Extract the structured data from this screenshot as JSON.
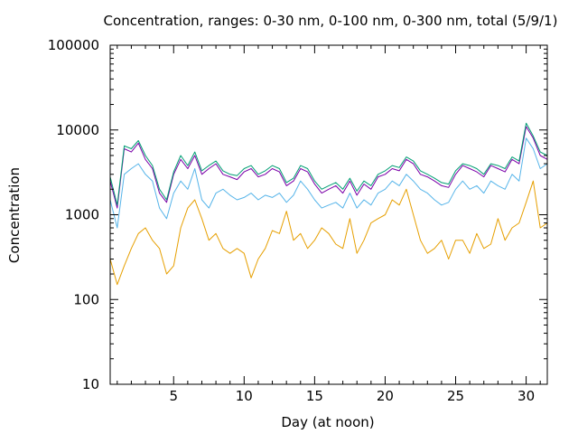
{
  "chart_data": {
    "type": "line",
    "title": "Concentration, ranges: 0-30 nm, 0-100 nm, 0-300 nm, total (5/9/1)",
    "xlabel": "Day (at noon)",
    "ylabel": "Concentration",
    "xlim": [
      0.5,
      31.5
    ],
    "ylim": [
      10,
      100000
    ],
    "yscale": "log",
    "grid": false,
    "legend": "none",
    "xticks": [
      5,
      10,
      15,
      20,
      25,
      30
    ],
    "xtick_labels": [
      "5",
      "10",
      "15",
      "20",
      "25",
      "30"
    ],
    "yticks": [
      10,
      100,
      1000,
      10000,
      100000
    ],
    "ytick_labels": [
      "10",
      "100",
      "1000",
      "10000",
      "100000"
    ],
    "series": [
      {
        "color": "#e69f00",
        "x": [
          0.5,
          1,
          1.5,
          2,
          2.5,
          3,
          3.5,
          4,
          4.5,
          5,
          5.5,
          6,
          6.5,
          7,
          7.5,
          8,
          8.5,
          9,
          9.5,
          10,
          10.5,
          11,
          11.5,
          12,
          12.5,
          13,
          13.5,
          14,
          14.5,
          15,
          15.5,
          16,
          16.5,
          17,
          17.5,
          18,
          18.5,
          19,
          19.5,
          20,
          20.5,
          21,
          21.5,
          22,
          22.5,
          23,
          23.5,
          24,
          24.5,
          25,
          25.5,
          26,
          26.5,
          27,
          27.5,
          28,
          28.5,
          29,
          29.5,
          30,
          30.5,
          31,
          31.5
        ],
        "values": [
          300,
          150,
          250,
          400,
          600,
          700,
          500,
          400,
          200,
          250,
          700,
          1200,
          1500,
          900,
          500,
          600,
          400,
          350,
          400,
          350,
          180,
          300,
          400,
          650,
          600,
          1100,
          500,
          600,
          400,
          500,
          700,
          600,
          450,
          400,
          900,
          350,
          500,
          800,
          900,
          1000,
          1500,
          1300,
          2000,
          1000,
          500,
          350,
          400,
          500,
          300,
          500,
          500,
          350,
          600,
          400,
          450,
          900,
          500,
          700,
          800,
          1400,
          2500,
          700,
          800
        ]
      },
      {
        "color": "#56b4e9",
        "x": [
          0.5,
          1,
          1.5,
          2,
          2.5,
          3,
          3.5,
          4,
          4.5,
          5,
          5.5,
          6,
          6.5,
          7,
          7.5,
          8,
          8.5,
          9,
          9.5,
          10,
          10.5,
          11,
          11.5,
          12,
          12.5,
          13,
          13.5,
          14,
          14.5,
          15,
          15.5,
          16,
          16.5,
          17,
          17.5,
          18,
          18.5,
          19,
          19.5,
          20,
          20.5,
          21,
          21.5,
          22,
          22.5,
          23,
          23.5,
          24,
          24.5,
          25,
          25.5,
          26,
          26.5,
          27,
          27.5,
          28,
          28.5,
          29,
          29.5,
          30,
          30.5,
          31,
          31.5
        ],
        "values": [
          1500,
          700,
          3000,
          3500,
          4000,
          3000,
          2500,
          1200,
          900,
          1800,
          2500,
          2000,
          3500,
          1500,
          1200,
          1800,
          2000,
          1700,
          1500,
          1600,
          1800,
          1500,
          1700,
          1600,
          1800,
          1400,
          1700,
          2500,
          2000,
          1500,
          1200,
          1300,
          1400,
          1200,
          1800,
          1200,
          1500,
          1300,
          1800,
          2000,
          2500,
          2200,
          3000,
          2500,
          2000,
          1800,
          1500,
          1300,
          1400,
          2000,
          2500,
          2000,
          2200,
          1800,
          2500,
          2200,
          2000,
          3000,
          2500,
          8000,
          6000,
          3500,
          4000
        ]
      },
      {
        "color": "#7b00a8",
        "x": [
          0.5,
          1,
          1.5,
          2,
          2.5,
          3,
          3.5,
          4,
          4.5,
          5,
          5.5,
          6,
          6.5,
          7,
          7.5,
          8,
          8.5,
          9,
          9.5,
          10,
          10.5,
          11,
          11.5,
          12,
          12.5,
          13,
          13.5,
          14,
          14.5,
          15,
          15.5,
          16,
          16.5,
          17,
          17.5,
          18,
          18.5,
          19,
          19.5,
          20,
          20.5,
          21,
          21.5,
          22,
          22.5,
          23,
          23.5,
          24,
          24.5,
          25,
          25.5,
          26,
          26.5,
          27,
          27.5,
          28,
          28.5,
          29,
          29.5,
          30,
          30.5,
          31,
          31.5
        ],
        "values": [
          2500,
          1200,
          6000,
          5500,
          7000,
          4500,
          3500,
          1800,
          1400,
          3000,
          4500,
          3500,
          5000,
          3000,
          3500,
          4000,
          3000,
          2800,
          2600,
          3200,
          3500,
          2800,
          3000,
          3500,
          3200,
          2200,
          2500,
          3500,
          3200,
          2300,
          1800,
          2000,
          2200,
          1800,
          2500,
          1700,
          2300,
          2000,
          2800,
          3000,
          3500,
          3300,
          4500,
          4000,
          3000,
          2800,
          2500,
          2200,
          2100,
          3000,
          3800,
          3500,
          3200,
          2800,
          3800,
          3500,
          3200,
          4500,
          4000,
          11000,
          8000,
          5000,
          4500
        ]
      },
      {
        "color": "#009e73",
        "x": [
          0.5,
          1,
          1.5,
          2,
          2.5,
          3,
          3.5,
          4,
          4.5,
          5,
          5.5,
          6,
          6.5,
          7,
          7.5,
          8,
          8.5,
          9,
          9.5,
          10,
          10.5,
          11,
          11.5,
          12,
          12.5,
          13,
          13.5,
          14,
          14.5,
          15,
          15.5,
          16,
          16.5,
          17,
          17.5,
          18,
          18.5,
          19,
          19.5,
          20,
          20.5,
          21,
          21.5,
          22,
          22.5,
          23,
          23.5,
          24,
          24.5,
          25,
          25.5,
          26,
          26.5,
          27,
          27.5,
          28,
          28.5,
          29,
          29.5,
          30,
          30.5,
          31,
          31.5
        ],
        "values": [
          2800,
          1300,
          6500,
          6000,
          7500,
          5000,
          3800,
          2000,
          1500,
          3200,
          5000,
          3800,
          5500,
          3300,
          3800,
          4300,
          3300,
          3000,
          2900,
          3500,
          3800,
          3000,
          3300,
          3800,
          3500,
          2400,
          2700,
          3800,
          3500,
          2500,
          2000,
          2200,
          2400,
          2000,
          2700,
          1900,
          2500,
          2200,
          3000,
          3300,
          3800,
          3600,
          4800,
          4300,
          3300,
          3000,
          2700,
          2400,
          2300,
          3300,
          4000,
          3800,
          3500,
          3000,
          4000,
          3800,
          3500,
          4800,
          4300,
          12000,
          8500,
          5500,
          5000
        ]
      }
    ]
  }
}
